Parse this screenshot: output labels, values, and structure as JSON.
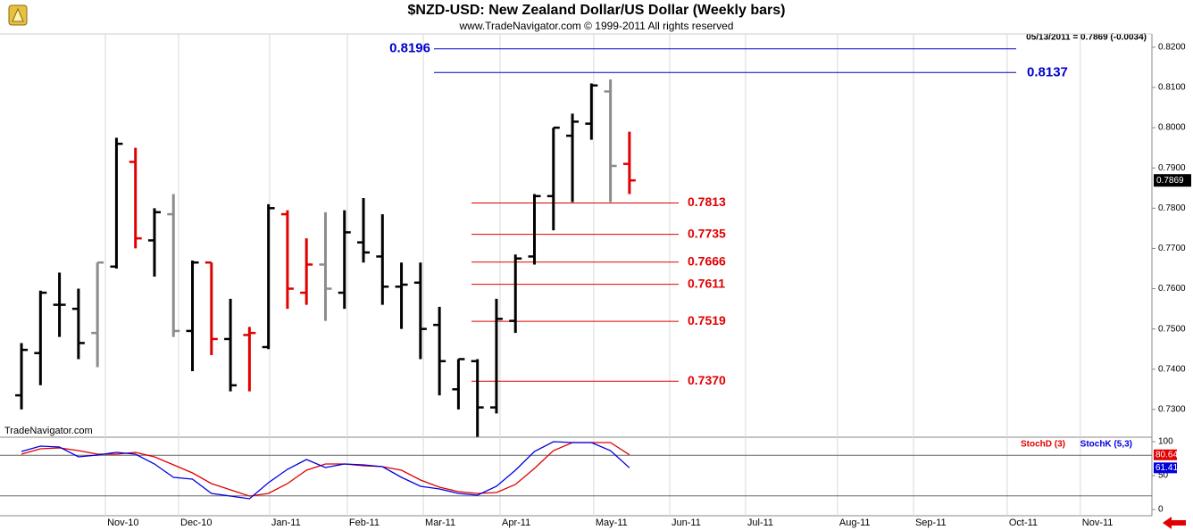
{
  "chart_data": [
    {
      "type": "ohlc",
      "title": "$NZD-USD:  New Zealand Dollar/US Dollar  (Weekly bars)",
      "subtitle": "www.TradeNavigator.com © 1999-2011 All rights reserved",
      "header_note": "05/13/2011 = 0.7869 (-0.0034)",
      "watermark": "TradeNavigator.com",
      "open": [
        0.7335,
        0.744,
        0.756,
        0.755,
        0.749,
        0.7655,
        0.7915,
        0.772,
        0.7785,
        0.7495,
        0.7665,
        0.7475,
        0.7485,
        0.7455,
        0.7785,
        0.759,
        0.766,
        0.759,
        0.7715,
        0.768,
        0.7605,
        0.7615,
        0.751,
        0.735,
        0.742,
        0.7305,
        0.752,
        0.768,
        0.783,
        0.798,
        0.801,
        0.809,
        0.791
      ],
      "high": [
        0.7465,
        0.7595,
        0.764,
        0.76,
        0.7665,
        0.7975,
        0.795,
        0.78,
        0.7835,
        0.767,
        0.7665,
        0.7575,
        0.7505,
        0.781,
        0.7795,
        0.7725,
        0.779,
        0.7795,
        0.7825,
        0.7785,
        0.7665,
        0.7665,
        0.7555,
        0.7425,
        0.7425,
        0.7575,
        0.7685,
        0.7835,
        0.8,
        0.8035,
        0.811,
        0.812,
        0.799
      ],
      "low": [
        0.73,
        0.736,
        0.748,
        0.7425,
        0.7405,
        0.765,
        0.77,
        0.763,
        0.748,
        0.7395,
        0.7435,
        0.7345,
        0.7345,
        0.745,
        0.755,
        0.756,
        0.752,
        0.755,
        0.7665,
        0.756,
        0.75,
        0.7425,
        0.7335,
        0.73,
        0.7232,
        0.729,
        0.749,
        0.766,
        0.7745,
        0.7815,
        0.797,
        0.7815,
        0.7835
      ],
      "close": [
        0.7448,
        0.759,
        0.756,
        0.7465,
        0.7665,
        0.796,
        0.7725,
        0.779,
        0.7495,
        0.7665,
        0.7475,
        0.736,
        0.749,
        0.78,
        0.76,
        0.766,
        0.76,
        0.774,
        0.769,
        0.7605,
        0.761,
        0.75,
        0.742,
        0.7425,
        0.7305,
        0.7525,
        0.7675,
        0.783,
        0.8,
        0.8015,
        0.8105,
        0.7905,
        0.7869
      ],
      "colors": [
        "#000000",
        "#000000",
        "#000000",
        "#000000",
        "#8c8c8c",
        "#000000",
        "#e00000",
        "#000000",
        "#8c8c8c",
        "#000000",
        "#e00000",
        "#000000",
        "#e00000",
        "#000000",
        "#e00000",
        "#e00000",
        "#8c8c8c",
        "#000000",
        "#000000",
        "#000000",
        "#000000",
        "#000000",
        "#000000",
        "#000000",
        "#000000",
        "#000000",
        "#000000",
        "#000000",
        "#000000",
        "#000000",
        "#000000",
        "#8c8c8c",
        "#e00000"
      ],
      "xlim": [
        -1.13,
        59.5
      ],
      "ylim": [
        0.7231,
        0.8233
      ],
      "yticks": [
        {
          "value": 0.73,
          "label": "0.7300"
        },
        {
          "value": 0.74,
          "label": "0.7400"
        },
        {
          "value": 0.75,
          "label": "0.7500"
        },
        {
          "value": 0.76,
          "label": "0.7600"
        },
        {
          "value": 0.77,
          "label": "0.7700"
        },
        {
          "value": 0.78,
          "label": "0.7800"
        },
        {
          "value": 0.79,
          "label": "0.7900"
        },
        {
          "value": 0.8,
          "label": "0.8000"
        },
        {
          "value": 0.81,
          "label": "0.8100"
        },
        {
          "value": 0.82,
          "label": "0.8200"
        }
      ],
      "levels": [
        {
          "value": 0.8196,
          "label": "0.8196",
          "color": "#0000cc"
        },
        {
          "value": 0.8137,
          "label": "0.8137",
          "color": "#0000cc"
        },
        {
          "value": 0.7813,
          "label": "0.7813",
          "color": "#e00000"
        },
        {
          "value": 0.7735,
          "label": "0.7735",
          "color": "#e00000"
        },
        {
          "value": 0.7666,
          "label": "0.7666",
          "color": "#e00000"
        },
        {
          "value": 0.7611,
          "label": "0.7611",
          "color": "#e00000"
        },
        {
          "value": 0.7519,
          "label": "0.7519",
          "color": "#e00000"
        },
        {
          "value": 0.737,
          "label": "0.7370",
          "color": "#e00000"
        }
      ]
    },
    {
      "type": "line",
      "series": [
        {
          "name": "StochD (3)",
          "color": "#e00000",
          "values": [
            81.6,
            89.5,
            90.8,
            86.8,
            81.6,
            81.6,
            84.2,
            77.6,
            65.8,
            53.9,
            38.2,
            28.9,
            19.7,
            23.7,
            38.2,
            57.9,
            67.1,
            67.1,
            64.5,
            63.2,
            57.9,
            43.4,
            32.9,
            26.3,
            23.7,
            25,
            36.8,
            60.5,
            86.8,
            98.7,
            98.7,
            98.7,
            80.64
          ]
        },
        {
          "name": "StochK (5,3)",
          "color": "#0000e0",
          "values": [
            85.5,
            93.4,
            92.1,
            77.6,
            80.3,
            84.2,
            81.6,
            67.1,
            47.4,
            44.7,
            23.7,
            19.7,
            15.8,
            39.5,
            59.2,
            73.7,
            61.8,
            67.1,
            65.8,
            63.2,
            47.4,
            34.2,
            30.3,
            23.7,
            21.1,
            34.2,
            57.9,
            85.5,
            100,
            98.7,
            98.7,
            86.8,
            61.41
          ]
        }
      ],
      "xlim": [
        -1.13,
        59.5
      ],
      "ylim": [
        -9.2,
        106.6
      ],
      "yticks": [
        0,
        50,
        100
      ],
      "levels": [
        20,
        80
      ],
      "xticks": [
        {
          "value": 4.42,
          "label": "Nov-10"
        },
        {
          "value": 8.27,
          "label": "Dec-10"
        },
        {
          "value": 13.06,
          "label": "Jan-11"
        },
        {
          "value": 17.15,
          "label": "Feb-11"
        },
        {
          "value": 21.15,
          "label": "Mar-11"
        },
        {
          "value": 25.19,
          "label": "Apr-11"
        },
        {
          "value": 30.12,
          "label": "May-11"
        },
        {
          "value": 34.12,
          "label": "Jun-11"
        },
        {
          "value": 38.11,
          "label": "Jul-11"
        },
        {
          "value": 42.95,
          "label": "Aug-11"
        },
        {
          "value": 46.95,
          "label": "Sep-11"
        },
        {
          "value": 51.88,
          "label": "Oct-11"
        },
        {
          "value": 55.73,
          "label": "Nov-11"
        }
      ]
    }
  ]
}
